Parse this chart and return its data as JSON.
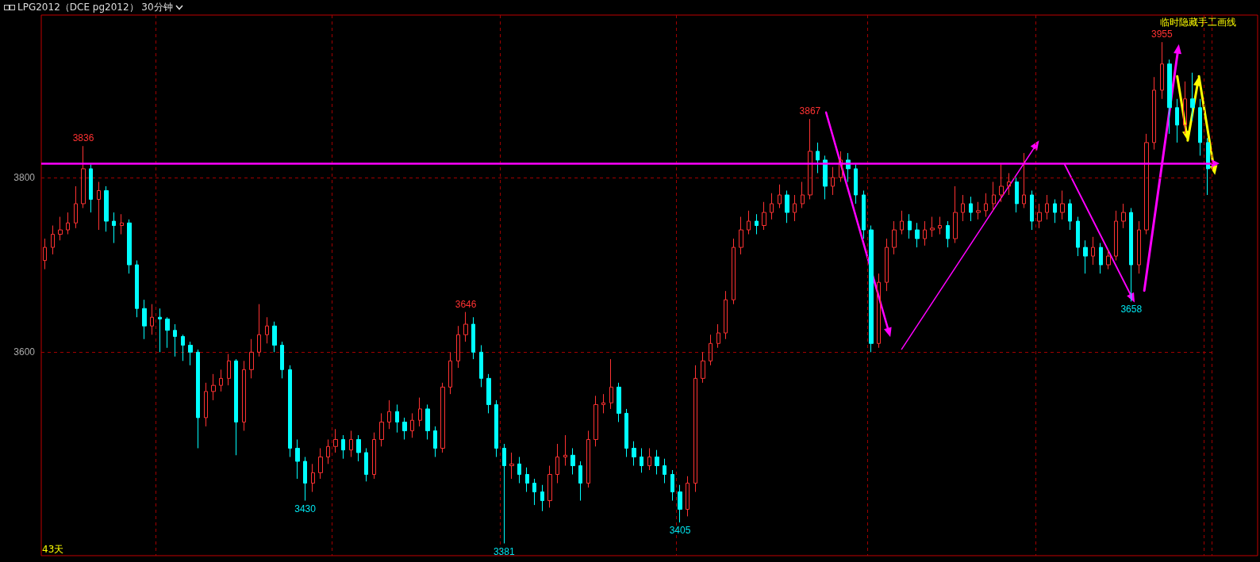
{
  "chart_data": {
    "type": "candlestick",
    "title": "LPG2012（DCE pg2012） 30分钟",
    "categories": [
      null,
      null,
      null,
      null,
      null,
      null,
      null,
      null,
      null,
      null,
      null,
      null,
      null,
      null,
      null,
      null,
      null,
      null,
      null,
      null,
      null,
      null,
      null,
      null,
      null,
      null,
      null,
      null,
      null,
      null,
      null,
      null,
      null,
      null,
      null,
      null,
      null,
      null,
      null,
      null,
      null,
      null,
      null,
      null,
      null,
      null,
      null,
      null,
      null,
      null,
      null,
      null,
      null,
      null,
      null,
      null,
      null,
      null,
      null,
      null,
      null,
      null,
      null,
      null,
      null,
      null,
      null,
      null,
      null,
      null,
      null,
      null,
      null,
      null,
      null,
      null,
      null,
      null,
      null,
      null,
      null,
      null,
      null,
      null,
      null,
      null,
      null,
      null,
      null,
      null,
      null,
      null,
      null,
      null,
      null,
      null,
      null,
      null,
      null,
      null,
      null,
      null,
      null,
      null,
      null,
      null,
      null,
      null,
      null,
      null,
      null,
      null,
      null,
      null,
      null,
      null,
      null,
      null,
      null,
      null,
      null,
      null,
      null,
      null,
      null,
      null,
      null,
      null,
      null,
      null,
      null,
      null,
      null,
      null,
      null,
      null,
      null,
      null,
      null,
      null,
      null,
      null,
      null,
      null,
      null,
      null,
      null,
      null,
      null,
      null,
      null,
      null,
      null
    ],
    "ohlc": [
      [
        3705,
        3730,
        3695,
        3720
      ],
      [
        3720,
        3745,
        3712,
        3735
      ],
      [
        3735,
        3755,
        3728,
        3740
      ],
      [
        3740,
        3760,
        3735,
        3748
      ],
      [
        3748,
        3790,
        3742,
        3770
      ],
      [
        3770,
        3836,
        3765,
        3810
      ],
      [
        3810,
        3815,
        3760,
        3775
      ],
      [
        3775,
        3795,
        3740,
        3785
      ],
      [
        3785,
        3790,
        3738,
        3750
      ],
      [
        3750,
        3760,
        3725,
        3745
      ],
      [
        3745,
        3758,
        3735,
        3748
      ],
      [
        3748,
        3752,
        3690,
        3700
      ],
      [
        3700,
        3705,
        3640,
        3650
      ],
      [
        3650,
        3660,
        3615,
        3630
      ],
      [
        3630,
        3655,
        3620,
        3640
      ],
      [
        3640,
        3650,
        3600,
        3638
      ],
      [
        3638,
        3640,
        3605,
        3625
      ],
      [
        3625,
        3632,
        3595,
        3618
      ],
      [
        3618,
        3620,
        3590,
        3608
      ],
      [
        3608,
        3612,
        3585,
        3600
      ],
      [
        3600,
        3603,
        3490,
        3525
      ],
      [
        3525,
        3565,
        3515,
        3555
      ],
      [
        3555,
        3575,
        3545,
        3562
      ],
      [
        3562,
        3580,
        3555,
        3570
      ],
      [
        3570,
        3598,
        3562,
        3590
      ],
      [
        3590,
        3592,
        3482,
        3520
      ],
      [
        3520,
        3590,
        3510,
        3580
      ],
      [
        3580,
        3615,
        3570,
        3600
      ],
      [
        3600,
        3655,
        3595,
        3620
      ],
      [
        3620,
        3640,
        3610,
        3630
      ],
      [
        3630,
        3635,
        3600,
        3608
      ],
      [
        3608,
        3612,
        3570,
        3580
      ],
      [
        3580,
        3585,
        3480,
        3490
      ],
      [
        3490,
        3500,
        3455,
        3475
      ],
      [
        3475,
        3480,
        3430,
        3450
      ],
      [
        3450,
        3472,
        3440,
        3462
      ],
      [
        3462,
        3490,
        3455,
        3480
      ],
      [
        3480,
        3500,
        3472,
        3492
      ],
      [
        3492,
        3512,
        3485,
        3500
      ],
      [
        3500,
        3505,
        3478,
        3488
      ],
      [
        3488,
        3510,
        3480,
        3500
      ],
      [
        3500,
        3505,
        3475,
        3485
      ],
      [
        3485,
        3490,
        3452,
        3460
      ],
      [
        3460,
        3508,
        3455,
        3500
      ],
      [
        3500,
        3530,
        3492,
        3520
      ],
      [
        3520,
        3545,
        3512,
        3532
      ],
      [
        3532,
        3540,
        3508,
        3520
      ],
      [
        3520,
        3525,
        3500,
        3510
      ],
      [
        3510,
        3530,
        3502,
        3522
      ],
      [
        3522,
        3548,
        3515,
        3535
      ],
      [
        3535,
        3540,
        3500,
        3510
      ],
      [
        3510,
        3515,
        3480,
        3490
      ],
      [
        3490,
        3565,
        3485,
        3560
      ],
      [
        3560,
        3600,
        3552,
        3590
      ],
      [
        3590,
        3630,
        3582,
        3620
      ],
      [
        3620,
        3646,
        3612,
        3632
      ],
      [
        3632,
        3640,
        3592,
        3600
      ],
      [
        3600,
        3608,
        3560,
        3570
      ],
      [
        3570,
        3575,
        3530,
        3540
      ],
      [
        3540,
        3545,
        3480,
        3490
      ],
      [
        3490,
        3495,
        3381,
        3470
      ],
      [
        3470,
        3485,
        3455,
        3472
      ],
      [
        3472,
        3480,
        3450,
        3460
      ],
      [
        3460,
        3468,
        3440,
        3450
      ],
      [
        3450,
        3455,
        3425,
        3440
      ],
      [
        3440,
        3448,
        3418,
        3430
      ],
      [
        3430,
        3470,
        3422,
        3460
      ],
      [
        3460,
        3495,
        3450,
        3480
      ],
      [
        3480,
        3505,
        3470,
        3482
      ],
      [
        3482,
        3490,
        3460,
        3470
      ],
      [
        3470,
        3475,
        3430,
        3450
      ],
      [
        3450,
        3510,
        3445,
        3500
      ],
      [
        3500,
        3550,
        3492,
        3540
      ],
      [
        3540,
        3552,
        3530,
        3542
      ],
      [
        3542,
        3592,
        3535,
        3560
      ],
      [
        3560,
        3565,
        3520,
        3530
      ],
      [
        3530,
        3535,
        3480,
        3490
      ],
      [
        3490,
        3498,
        3470,
        3480
      ],
      [
        3480,
        3490,
        3462,
        3470
      ],
      [
        3470,
        3490,
        3465,
        3480
      ],
      [
        3480,
        3488,
        3460,
        3470
      ],
      [
        3470,
        3478,
        3450,
        3460
      ],
      [
        3460,
        3465,
        3430,
        3440
      ],
      [
        3440,
        3448,
        3405,
        3420
      ],
      [
        3420,
        3458,
        3412,
        3450
      ],
      [
        3450,
        3585,
        3440,
        3570
      ],
      [
        3570,
        3600,
        3565,
        3590
      ],
      [
        3590,
        3620,
        3585,
        3610
      ],
      [
        3610,
        3632,
        3605,
        3622
      ],
      [
        3622,
        3670,
        3615,
        3660
      ],
      [
        3660,
        3730,
        3655,
        3720
      ],
      [
        3720,
        3755,
        3712,
        3740
      ],
      [
        3740,
        3762,
        3735,
        3750
      ],
      [
        3750,
        3758,
        3735,
        3745
      ],
      [
        3745,
        3772,
        3740,
        3760
      ],
      [
        3760,
        3782,
        3752,
        3770
      ],
      [
        3770,
        3792,
        3765,
        3780
      ],
      [
        3780,
        3785,
        3748,
        3760
      ],
      [
        3760,
        3780,
        3750,
        3770
      ],
      [
        3770,
        3795,
        3765,
        3780
      ],
      [
        3780,
        3867,
        3775,
        3830
      ],
      [
        3830,
        3840,
        3805,
        3820
      ],
      [
        3820,
        3825,
        3775,
        3790
      ],
      [
        3790,
        3812,
        3780,
        3800
      ],
      [
        3800,
        3830,
        3795,
        3820
      ],
      [
        3820,
        3828,
        3795,
        3810
      ],
      [
        3810,
        3815,
        3770,
        3780
      ],
      [
        3780,
        3785,
        3730,
        3740
      ],
      [
        3740,
        3745,
        3600,
        3610
      ],
      [
        3610,
        3690,
        3605,
        3680
      ],
      [
        3680,
        3730,
        3670,
        3720
      ],
      [
        3720,
        3750,
        3712,
        3740
      ],
      [
        3740,
        3762,
        3735,
        3750
      ],
      [
        3750,
        3758,
        3730,
        3740
      ],
      [
        3740,
        3748,
        3720,
        3730
      ],
      [
        3730,
        3750,
        3722,
        3740
      ],
      [
        3740,
        3755,
        3732,
        3742
      ],
      [
        3742,
        3755,
        3735,
        3745
      ],
      [
        3745,
        3750,
        3720,
        3730
      ],
      [
        3730,
        3790,
        3725,
        3760
      ],
      [
        3760,
        3780,
        3750,
        3770
      ],
      [
        3770,
        3778,
        3750,
        3760
      ],
      [
        3760,
        3772,
        3752,
        3762
      ],
      [
        3762,
        3782,
        3755,
        3770
      ],
      [
        3770,
        3795,
        3762,
        3780
      ],
      [
        3780,
        3815,
        3772,
        3790
      ],
      [
        3790,
        3805,
        3780,
        3795
      ],
      [
        3795,
        3800,
        3760,
        3770
      ],
      [
        3770,
        3828,
        3765,
        3780
      ],
      [
        3780,
        3785,
        3740,
        3750
      ],
      [
        3750,
        3770,
        3742,
        3760
      ],
      [
        3760,
        3780,
        3752,
        3770
      ],
      [
        3770,
        3775,
        3748,
        3760
      ],
      [
        3760,
        3785,
        3752,
        3770
      ],
      [
        3770,
        3775,
        3740,
        3750
      ],
      [
        3750,
        3755,
        3710,
        3720
      ],
      [
        3720,
        3728,
        3690,
        3710
      ],
      [
        3710,
        3732,
        3700,
        3720
      ],
      [
        3720,
        3725,
        3690,
        3700
      ],
      [
        3700,
        3718,
        3695,
        3710
      ],
      [
        3710,
        3762,
        3705,
        3750
      ],
      [
        3750,
        3770,
        3742,
        3760
      ],
      [
        3760,
        3765,
        3658,
        3700
      ],
      [
        3700,
        3750,
        3690,
        3740
      ],
      [
        3740,
        3850,
        3735,
        3840
      ],
      [
        3840,
        3915,
        3832,
        3900
      ],
      [
        3900,
        3955,
        3890,
        3930
      ],
      [
        3930,
        3935,
        3850,
        3880
      ],
      [
        3880,
        3890,
        3840,
        3860
      ],
      [
        3860,
        3910,
        3850,
        3890
      ],
      [
        3890,
        3920,
        3865,
        3880
      ],
      [
        3880,
        3890,
        3825,
        3840
      ],
      [
        3840,
        3845,
        3780,
        3810
      ]
    ],
    "ylim": [
      3367,
      3986
    ],
    "ref_lines": [
      {
        "axis": "y",
        "value": 3816,
        "color": "#ff00ff"
      }
    ],
    "yticks": [
      3600,
      3800
    ],
    "grid": "y",
    "annotations": [
      {
        "text": "3836",
        "y": 3836
      },
      {
        "text": "3646",
        "y": 3646
      },
      {
        "text": "3430",
        "y": 3430
      },
      {
        "text": "3381",
        "y": 3381
      },
      {
        "text": "3405",
        "y": 3405
      },
      {
        "text": "3867",
        "y": 3867
      },
      {
        "text": "3658",
        "y": 3658
      },
      {
        "text": "3955",
        "y": 3955
      },
      "临时隐藏手工画线",
      "43天"
    ]
  }
}
